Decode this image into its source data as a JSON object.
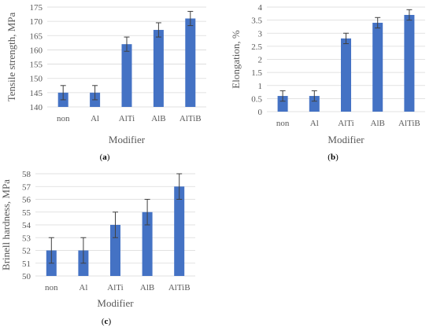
{
  "chart_data": [
    {
      "type": "bar",
      "panel": "(a)",
      "panel_letter": "a",
      "categories": [
        "non",
        "Al",
        "AlTi",
        "AlB",
        "AlTiB"
      ],
      "values": [
        145,
        145,
        162,
        167,
        171
      ],
      "errors": [
        2.5,
        2.5,
        2.5,
        2.5,
        2.5
      ],
      "xlabel": "Modifier",
      "ylabel": "Tensile strength, MPa",
      "ylim": [
        140,
        175
      ],
      "yticks": [
        140,
        145,
        150,
        155,
        160,
        165,
        170,
        175
      ],
      "grid": true,
      "color": "#4472c4"
    },
    {
      "type": "bar",
      "panel": "(b)",
      "panel_letter": "b",
      "categories": [
        "non",
        "Al",
        "AlTi",
        "AlB",
        "AlTiB"
      ],
      "values": [
        0.6,
        0.6,
        2.8,
        3.4,
        3.7
      ],
      "errors": [
        0.2,
        0.2,
        0.2,
        0.2,
        0.2
      ],
      "xlabel": "Modifier",
      "ylabel": "Elongation, %",
      "ylim": [
        0,
        4
      ],
      "yticks": [
        0,
        0.5,
        1,
        1.5,
        2,
        2.5,
        3,
        3.5,
        4
      ],
      "grid": true,
      "color": "#4472c4"
    },
    {
      "type": "bar",
      "panel": "(c)",
      "panel_letter": "c",
      "categories": [
        "non",
        "Al",
        "AlTi",
        "AlB",
        "AlTiB"
      ],
      "values": [
        52,
        52,
        54,
        55,
        57
      ],
      "errors": [
        1,
        1,
        1,
        1,
        1
      ],
      "xlabel": "Modifier",
      "ylabel": "Brinell hardness, MPa",
      "ylim": [
        50,
        58
      ],
      "yticks": [
        50,
        51,
        52,
        53,
        54,
        55,
        56,
        57,
        58
      ],
      "grid": true,
      "color": "#4472c4"
    }
  ]
}
